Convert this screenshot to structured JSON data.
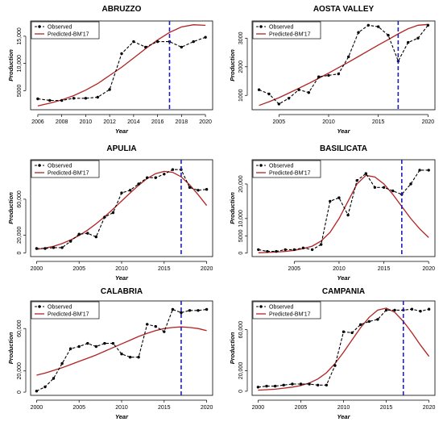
{
  "legend": {
    "observed": "Observed",
    "predicted": "Predicted-BM'17"
  },
  "colors": {
    "observed": "#000000",
    "predicted": "#b22222",
    "vline": "#1f1fb4"
  },
  "chart_data": [
    {
      "type": "line",
      "title": "ABRUZZO",
      "xlabel": "Year",
      "ylabel": "Production",
      "xlim": [
        2005.4,
        2020.6
      ],
      "ylim": [
        1500,
        17800
      ],
      "xticks": [
        2006,
        2008,
        2010,
        2012,
        2014,
        2016,
        2018,
        2020
      ],
      "yticks": [
        5000,
        10000,
        15000
      ],
      "ytick_labels": [
        "5000",
        "10,000",
        "15,000"
      ],
      "vline": 2017,
      "series": [
        {
          "name": "Observed",
          "x": [
            2006,
            2007,
            2008,
            2009,
            2010,
            2011,
            2012,
            2013,
            2014,
            2015,
            2016,
            2017,
            2018,
            2019,
            2020
          ],
          "values": [
            3500,
            3200,
            3200,
            3600,
            3600,
            3800,
            5200,
            11800,
            14000,
            13000,
            14000,
            14000,
            13000,
            14000,
            14800
          ]
        },
        {
          "name": "Predicted-BM'17",
          "x": [
            2006,
            2007,
            2008,
            2009,
            2010,
            2011,
            2012,
            2013,
            2014,
            2015,
            2016,
            2017,
            2018,
            2019,
            2020
          ],
          "values": [
            2200,
            2700,
            3300,
            4100,
            5100,
            6300,
            7800,
            9300,
            11000,
            12700,
            14300,
            15700,
            16700,
            17100,
            17000
          ]
        }
      ]
    },
    {
      "type": "line",
      "title": "AOSTA VALLEY",
      "xlabel": "Year",
      "ylabel": "Production",
      "xlim": [
        2002.3,
        2020.7
      ],
      "ylim": [
        500,
        3600
      ],
      "xticks": [
        2005,
        2010,
        2015,
        2020
      ],
      "yticks": [
        1000,
        2000,
        3000
      ],
      "ytick_labels": [
        "1000",
        "2000",
        "3000"
      ],
      "vline": 2017,
      "series": [
        {
          "name": "Observed",
          "x": [
            2003,
            2004,
            2005,
            2006,
            2007,
            2008,
            2009,
            2010,
            2011,
            2012,
            2013,
            2014,
            2015,
            2016,
            2017,
            2018,
            2019,
            2020
          ],
          "values": [
            1200,
            1050,
            700,
            900,
            1200,
            1100,
            1650,
            1700,
            1750,
            2350,
            3200,
            3450,
            3400,
            3100,
            2200,
            2850,
            3000,
            3450
          ]
        },
        {
          "name": "Predicted-BM'17",
          "x": [
            2003,
            2004,
            2005,
            2006,
            2007,
            2008,
            2009,
            2010,
            2011,
            2012,
            2013,
            2014,
            2015,
            2016,
            2017,
            2018,
            2019,
            2020
          ],
          "values": [
            650,
            780,
            920,
            1080,
            1250,
            1420,
            1600,
            1780,
            1970,
            2160,
            2360,
            2560,
            2760,
            2950,
            3150,
            3330,
            3450,
            3480
          ]
        }
      ]
    },
    {
      "type": "line",
      "title": "APULIA",
      "xlabel": "Year",
      "ylabel": "Production",
      "xlim": [
        1999.3,
        2020.7
      ],
      "ylim": [
        -4000,
        104000
      ],
      "xticks": [
        2000,
        2005,
        2010,
        2015,
        2020
      ],
      "yticks": [
        0,
        20000,
        60000
      ],
      "ytick_labels": [
        "0",
        "20,000",
        "60,000"
      ],
      "vline": 2017,
      "series": [
        {
          "name": "Observed",
          "x": [
            2000,
            2001,
            2002,
            2003,
            2004,
            2005,
            2006,
            2007,
            2008,
            2009,
            2010,
            2011,
            2012,
            2013,
            2014,
            2015,
            2016,
            2017,
            2018,
            2019,
            2020
          ],
          "values": [
            5000,
            5000,
            6000,
            6000,
            13000,
            21000,
            22000,
            18000,
            40000,
            45000,
            67000,
            70000,
            77000,
            84000,
            84000,
            88000,
            93000,
            93000,
            73000,
            70000,
            71000
          ]
        },
        {
          "name": "Predicted-BM'17",
          "x": [
            2000,
            2001,
            2002,
            2003,
            2004,
            2005,
            2006,
            2007,
            2008,
            2009,
            2010,
            2011,
            2012,
            2013,
            2014,
            2015,
            2016,
            2017,
            2018,
            2019,
            2020
          ],
          "values": [
            4000,
            5500,
            7500,
            10500,
            14500,
            19500,
            25500,
            32500,
            40500,
            49000,
            58000,
            67000,
            75500,
            83000,
            88500,
            91000,
            90000,
            85000,
            76000,
            65000,
            53000
          ]
        }
      ]
    },
    {
      "type": "line",
      "title": "BASILICATA",
      "xlabel": "Year",
      "ylabel": "Production",
      "xlim": [
        2000.3,
        2020.7
      ],
      "ylim": [
        -1000,
        27000
      ],
      "xticks": [
        2005,
        2010,
        2015,
        2020
      ],
      "yticks": [
        0,
        5000,
        10000,
        20000
      ],
      "ytick_labels": [
        "0",
        "5000",
        "10,000",
        "20,000"
      ],
      "vline": 2017,
      "series": [
        {
          "name": "Observed",
          "x": [
            2001,
            2002,
            2003,
            2004,
            2005,
            2006,
            2007,
            2008,
            2009,
            2010,
            2011,
            2012,
            2013,
            2014,
            2015,
            2016,
            2017,
            2018,
            2019,
            2020
          ],
          "values": [
            1000,
            500,
            500,
            1000,
            1000,
            1500,
            1000,
            2500,
            15000,
            16000,
            11000,
            21000,
            23000,
            19000,
            19000,
            18000,
            17000,
            20000,
            24000,
            24000
          ]
        },
        {
          "name": "Predicted-BM'17",
          "x": [
            2001,
            2002,
            2003,
            2004,
            2005,
            2006,
            2007,
            2008,
            2009,
            2010,
            2011,
            2012,
            2013,
            2014,
            2015,
            2016,
            2017,
            2018,
            2019,
            2020
          ],
          "values": [
            100,
            200,
            300,
            500,
            800,
            1300,
            2000,
            3500,
            6000,
            10000,
            15000,
            20000,
            22500,
            22000,
            20000,
            17000,
            13500,
            10000,
            7000,
            4500
          ]
        }
      ]
    },
    {
      "type": "line",
      "title": "CALABRIA",
      "xlabel": "Year",
      "ylabel": "Production",
      "xlim": [
        1999.3,
        2020.7
      ],
      "ylim": [
        -3000,
        86000
      ],
      "xticks": [
        2000,
        2005,
        2010,
        2015,
        2020
      ],
      "yticks": [
        0,
        20000,
        60000
      ],
      "ytick_labels": [
        "0",
        "20,000",
        "60,000"
      ],
      "vline": 2017,
      "series": [
        {
          "name": "Observed",
          "x": [
            2000,
            2001,
            2002,
            2003,
            2004,
            2005,
            2006,
            2007,
            2008,
            2009,
            2010,
            2011,
            2012,
            2013,
            2014,
            2015,
            2016,
            2017,
            2018,
            2019,
            2020
          ],
          "values": [
            1000,
            5000,
            13000,
            27000,
            41000,
            43000,
            46000,
            43000,
            46000,
            46000,
            36000,
            33000,
            33000,
            64000,
            62000,
            57000,
            78000,
            75000,
            77000,
            77000,
            78000
          ]
        },
        {
          "name": "Predicted-BM'17",
          "x": [
            2000,
            2001,
            2002,
            2003,
            2004,
            2005,
            2006,
            2007,
            2008,
            2009,
            2010,
            2011,
            2012,
            2013,
            2014,
            2015,
            2016,
            2017,
            2018,
            2019,
            2020
          ],
          "values": [
            16000,
            18000,
            20500,
            23000,
            26000,
            29000,
            32000,
            35000,
            38500,
            42000,
            45500,
            49000,
            52500,
            55500,
            58000,
            60000,
            61000,
            61500,
            61000,
            60000,
            58000
          ]
        }
      ]
    },
    {
      "type": "line",
      "title": "CAMPANIA",
      "xlabel": "Year",
      "ylabel": "Production",
      "xlim": [
        1999.3,
        2020.7
      ],
      "ylim": [
        -4000,
        88000
      ],
      "xticks": [
        2000,
        2005,
        2010,
        2015,
        2020
      ],
      "yticks": [
        0,
        20000,
        60000
      ],
      "ytick_labels": [
        "0",
        "20,000",
        "60,000"
      ],
      "vline": 2017,
      "series": [
        {
          "name": "Observed",
          "x": [
            2000,
            2001,
            2002,
            2003,
            2004,
            2005,
            2006,
            2007,
            2008,
            2009,
            2010,
            2011,
            2012,
            2013,
            2014,
            2015,
            2016,
            2017,
            2018,
            2019,
            2020
          ],
          "values": [
            4000,
            5000,
            5000,
            6000,
            7000,
            7000,
            7000,
            6000,
            6000,
            25000,
            58000,
            57000,
            65000,
            68000,
            70000,
            79000,
            79000,
            79000,
            80000,
            78000,
            80000
          ]
        },
        {
          "name": "Predicted-BM'17",
          "x": [
            2000,
            2001,
            2002,
            2003,
            2004,
            2005,
            2006,
            2007,
            2008,
            2009,
            2010,
            2011,
            2012,
            2013,
            2014,
            2015,
            2016,
            2017,
            2018,
            2019,
            2020
          ],
          "values": [
            1000,
            1500,
            2000,
            3000,
            4000,
            5500,
            8000,
            12000,
            18000,
            27000,
            38000,
            50000,
            62000,
            72000,
            79000,
            81000,
            77000,
            68000,
            57000,
            45000,
            34000
          ]
        }
      ]
    }
  ]
}
